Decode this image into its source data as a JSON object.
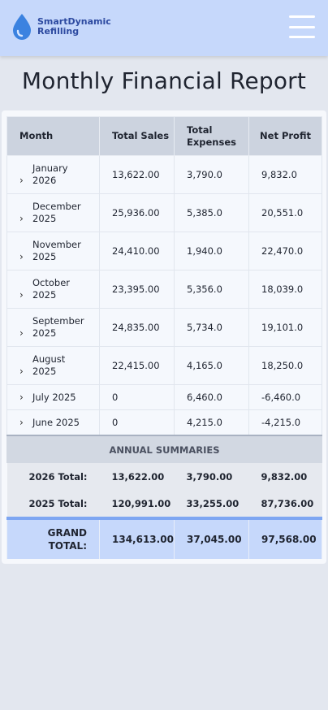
{
  "header": {
    "brand_line1": "SmartDynamic",
    "brand_line2": "Refilling",
    "logo_icon": "water-drop-icon",
    "menu_icon": "hamburger-menu-icon",
    "colors": {
      "header_bg": "#c6d8fb",
      "brand_text": "#2d4aa0",
      "drop": "#3b82e0",
      "accent": "#7ea6f2"
    }
  },
  "page": {
    "title": "Monthly Financial Report"
  },
  "table": {
    "columns": [
      "Month",
      "Total Sales",
      "Total Expenses",
      "Net Profit"
    ],
    "rows": [
      {
        "month": "January 2026",
        "sales": "13,622.00",
        "expenses": "3,790.0",
        "profit": "9,832.0"
      },
      {
        "month": "December 2025",
        "sales": "25,936.00",
        "expenses": "5,385.0",
        "profit": "20,551.0"
      },
      {
        "month": "November 2025",
        "sales": "24,410.00",
        "expenses": "1,940.0",
        "profit": "22,470.0"
      },
      {
        "month": "October 2025",
        "sales": "23,395.00",
        "expenses": "5,356.0",
        "profit": "18,039.0"
      },
      {
        "month": "September 2025",
        "sales": "24,835.00",
        "expenses": "5,734.0",
        "profit": "19,101.0"
      },
      {
        "month": "August 2025",
        "sales": "22,415.00",
        "expenses": "4,165.0",
        "profit": "18,250.0"
      },
      {
        "month": "July 2025",
        "sales": "0",
        "expenses": "6,460.0",
        "profit": "-6,460.0"
      },
      {
        "month": "June 2025",
        "sales": "0",
        "expenses": "4,215.0",
        "profit": "-4,215.0"
      }
    ],
    "summary_heading": "ANNUAL SUMMARIES",
    "summaries": [
      {
        "label": "2026 Total:",
        "sales": "13,622.00",
        "expenses": "3,790.00",
        "profit": "9,832.00"
      },
      {
        "label": "2025 Total:",
        "sales": "120,991.00",
        "expenses": "33,255.00",
        "profit": "87,736.00"
      }
    ],
    "grand": {
      "label": "GRAND TOTAL:",
      "sales": "134,613.00",
      "expenses": "37,045.00",
      "profit": "97,568.00"
    },
    "expand_icon": "chevron-right-icon"
  }
}
